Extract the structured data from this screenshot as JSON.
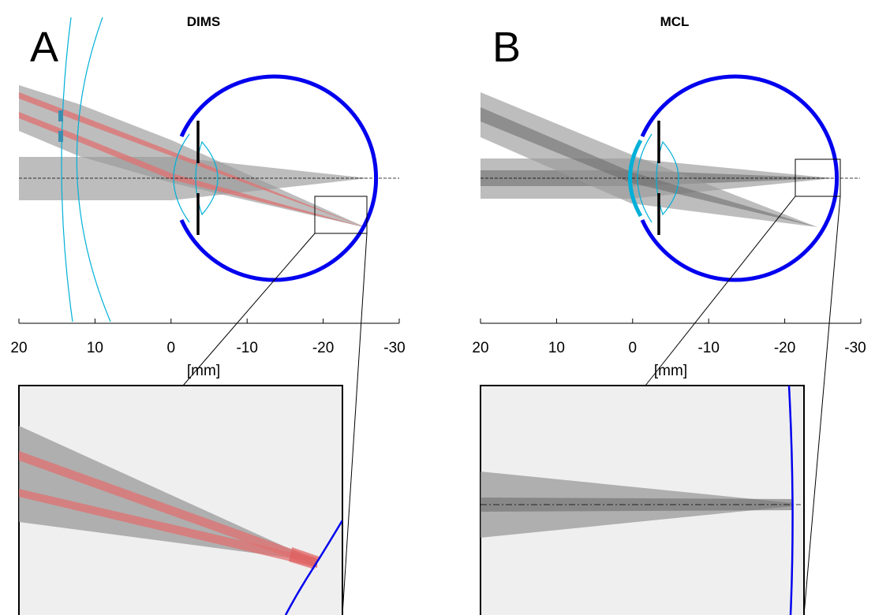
{
  "panels": [
    {
      "letter": "A",
      "title": "DIMS",
      "xaxis": {
        "label": "[mm]",
        "ticks": [
          "20",
          "10",
          "0",
          "-10",
          "-20",
          "-30"
        ]
      }
    },
    {
      "letter": "B",
      "title": "MCL",
      "xaxis": {
        "label": "[mm]",
        "ticks": [
          "20",
          "10",
          "0",
          "-10",
          "-20",
          "-30"
        ]
      }
    }
  ],
  "colors": {
    "eye": "#0000ee",
    "lens": "#00b0d8",
    "ray_gray": "#9a9a9a",
    "ray_dark": "#6e6e6e",
    "ray_red": "#e07070",
    "iris": "#000000",
    "inset_bg": "#efefef"
  }
}
